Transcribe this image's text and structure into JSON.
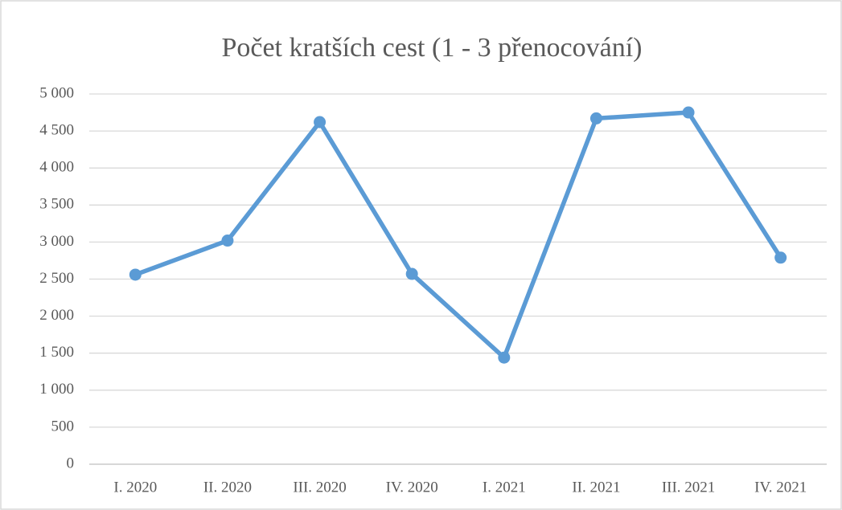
{
  "chart_data": {
    "type": "line",
    "title": "Počet kratších cest (1 - 3 přenocování)",
    "categories": [
      "I. 2020",
      "II. 2020",
      "III. 2020",
      "IV. 2020",
      "I. 2021",
      "II. 2021",
      "III. 2021",
      "IV. 2021"
    ],
    "series": [
      {
        "name": "Počet kratších cest",
        "color": "#5b9bd5",
        "values": [
          2560,
          3020,
          4620,
          2570,
          1440,
          4670,
          4750,
          2790
        ]
      }
    ],
    "ylim": [
      0,
      5000
    ],
    "yticks": [
      0,
      500,
      {
        "value": 1000,
        "label": "1 000"
      },
      {
        "value": 1500,
        "label": "1 500"
      },
      {
        "value": 2000,
        "label": "2 000"
      },
      {
        "value": 2500,
        "label": "2 500"
      },
      {
        "value": 3000,
        "label": "3 000"
      },
      {
        "value": 3500,
        "label": "3 500"
      },
      {
        "value": 4000,
        "label": "4 000"
      },
      {
        "value": 4500,
        "label": "4 500"
      },
      {
        "value": 5000,
        "label": "5 000"
      }
    ],
    "grid": true
  }
}
